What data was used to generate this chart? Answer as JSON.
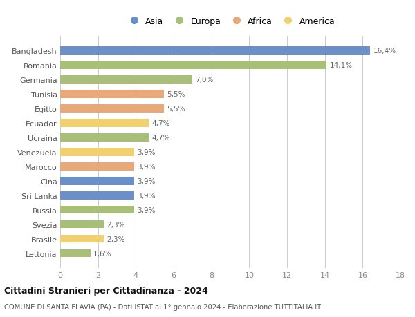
{
  "countries": [
    "Bangladesh",
    "Romania",
    "Germania",
    "Tunisia",
    "Egitto",
    "Ecuador",
    "Ucraina",
    "Venezuela",
    "Marocco",
    "Cina",
    "Sri Lanka",
    "Russia",
    "Svezia",
    "Brasile",
    "Lettonia"
  ],
  "values": [
    16.4,
    14.1,
    7.0,
    5.5,
    5.5,
    4.7,
    4.7,
    3.9,
    3.9,
    3.9,
    3.9,
    3.9,
    2.3,
    2.3,
    1.6
  ],
  "labels": [
    "16,4%",
    "14,1%",
    "7,0%",
    "5,5%",
    "5,5%",
    "4,7%",
    "4,7%",
    "3,9%",
    "3,9%",
    "3,9%",
    "3,9%",
    "3,9%",
    "2,3%",
    "2,3%",
    "1,6%"
  ],
  "continents": [
    "Asia",
    "Europa",
    "Europa",
    "Africa",
    "Africa",
    "America",
    "Europa",
    "America",
    "Africa",
    "Asia",
    "Asia",
    "Europa",
    "Europa",
    "America",
    "Europa"
  ],
  "colors": {
    "Asia": "#6b8fc9",
    "Europa": "#a8bf78",
    "Africa": "#e8a878",
    "America": "#f0d070"
  },
  "xlim": [
    0,
    18
  ],
  "xticks": [
    0,
    2,
    4,
    6,
    8,
    10,
    12,
    14,
    16,
    18
  ],
  "title": "Cittadini Stranieri per Cittadinanza - 2024",
  "subtitle": "COMUNE DI SANTA FLAVIA (PA) - Dati ISTAT al 1° gennaio 2024 - Elaborazione TUTTITALIA.IT",
  "background_color": "#ffffff",
  "grid_color": "#cccccc",
  "bar_height": 0.55,
  "legend_order": [
    "Asia",
    "Europa",
    "Africa",
    "America"
  ]
}
